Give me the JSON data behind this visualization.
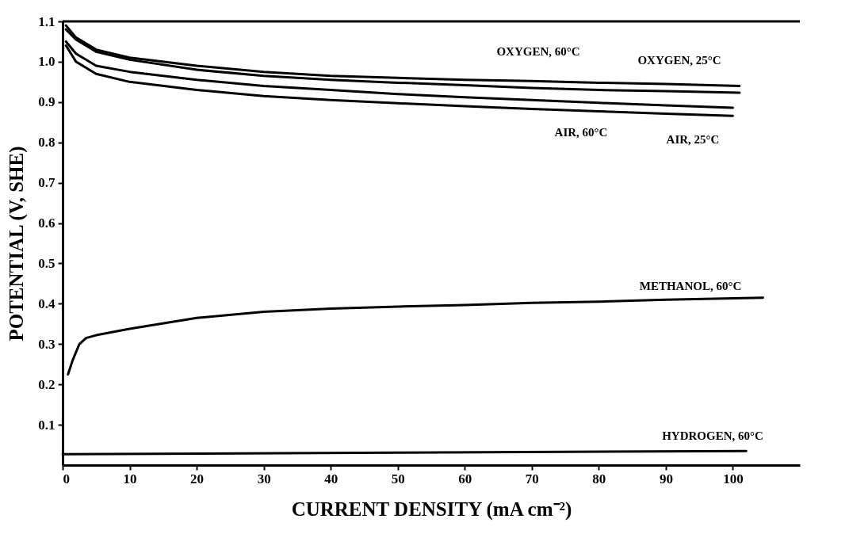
{
  "chart_data": {
    "type": "line",
    "xlabel": "CURRENT DENSITY (mA  cm⁻²)",
    "ylabel": "POTENTIAL (V,  SHE)",
    "xlim": [
      0,
      110
    ],
    "ylim": [
      0,
      1.1
    ],
    "xticks": [
      0,
      10,
      20,
      30,
      40,
      50,
      60,
      70,
      80,
      90,
      100
    ],
    "yticks": [
      0.1,
      0.2,
      0.3,
      0.4,
      0.5,
      0.6,
      0.7,
      0.8,
      0.9,
      {
        "value": 1,
        "label": "1.0"
      },
      1.1
    ],
    "grid": false,
    "marker": "none",
    "line_style": "solid",
    "series": [
      {
        "color": "#000000",
        "x": [
          0.5,
          2,
          5,
          10,
          20,
          30,
          40,
          50,
          60,
          70,
          80,
          90,
          101
        ],
        "values": [
          1.09,
          1.06,
          1.03,
          1.01,
          0.99,
          0.975,
          0.965,
          0.96,
          0.955,
          0.952,
          0.948,
          0.945,
          0.94
        ]
      },
      {
        "color": "#000000",
        "x": [
          0.5,
          2,
          5,
          10,
          20,
          30,
          40,
          50,
          60,
          70,
          80,
          90,
          101
        ],
        "values": [
          1.08,
          1.055,
          1.025,
          1.005,
          0.98,
          0.965,
          0.955,
          0.948,
          0.942,
          0.935,
          0.93,
          0.927,
          0.923
        ]
      },
      {
        "color": "#000000",
        "x": [
          0.5,
          2,
          5,
          10,
          20,
          30,
          40,
          50,
          60,
          70,
          80,
          90,
          100
        ],
        "values": [
          1.05,
          1.02,
          0.99,
          0.975,
          0.955,
          0.94,
          0.93,
          0.92,
          0.912,
          0.905,
          0.898,
          0.892,
          0.886
        ]
      },
      {
        "color": "#000000",
        "x": [
          0.5,
          2,
          5,
          10,
          20,
          30,
          40,
          50,
          60,
          70,
          80,
          90,
          100
        ],
        "values": [
          1.04,
          1.0,
          0.97,
          0.95,
          0.93,
          0.915,
          0.905,
          0.897,
          0.89,
          0.883,
          0.877,
          0.871,
          0.866
        ]
      },
      {
        "color": "#000000",
        "x": [
          0.8,
          1.5,
          2.5,
          3.5,
          5,
          10,
          20,
          30,
          40,
          50,
          60,
          70,
          80,
          90,
          104.5
        ],
        "values": [
          0.225,
          0.26,
          0.3,
          0.315,
          0.322,
          0.338,
          0.365,
          0.38,
          0.388,
          0.393,
          0.397,
          0.402,
          0.405,
          0.41,
          0.415
        ]
      },
      {
        "color": "#000000",
        "x": [
          0,
          50,
          102
        ],
        "values": [
          0.027,
          0.031,
          0.035
        ]
      }
    ],
    "annotations": [
      "OXYGEN, 60°C",
      "OXYGEN, 25°C",
      "AIR, 60°C",
      "AIR, 25°C",
      "METHANOL, 60°C",
      "HYDROGEN, 60°C"
    ]
  }
}
